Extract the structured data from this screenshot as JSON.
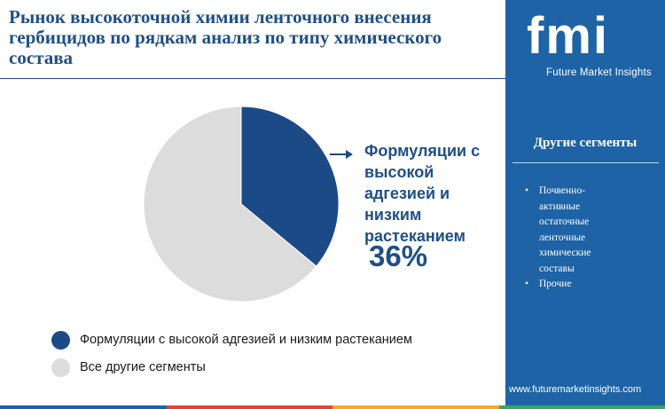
{
  "title": "Рынок высокоточной химии ленточного внесения гербицидов по рядкам анализ по типу химического состава",
  "brand": {
    "logo_text": "fmi",
    "name": "Future Market Insights",
    "url": "www.futuremarketinsights.com"
  },
  "sidebar": {
    "heading": "Другие сегменты",
    "items": [
      {
        "bullet": "•",
        "label": "Почвенно-активные остаточные ленточные химические составы"
      },
      {
        "bullet": "•",
        "label": "Прочие"
      }
    ]
  },
  "callout": {
    "label": "Формуляции с высокой адгезией и низким растеканием",
    "value": "36%"
  },
  "colors": {
    "primary": "#1b4a86",
    "secondary": "#dcdcdc",
    "sidebar": "#1e63a6",
    "title": "#1f4f86",
    "bottom_bar": [
      "#1e63a6",
      "#e0443e",
      "#f0a830",
      "#3aa55c"
    ]
  },
  "chart_data": {
    "type": "pie",
    "title": "",
    "slices": [
      {
        "name": "Формуляции с высокой адгезией и низким растеканием",
        "value": 36,
        "color": "#1b4a86"
      },
      {
        "name": "Все другие сегменты",
        "value": 64,
        "color": "#dcdcdc"
      }
    ],
    "legend": "bottom-left"
  }
}
